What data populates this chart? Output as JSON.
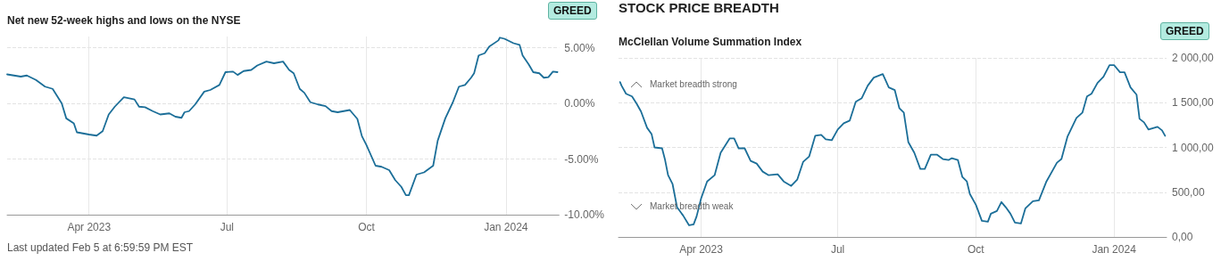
{
  "chart_data": [
    {
      "type": "line",
      "title": "Net new 52-week highs and lows on the NYSE",
      "color": "#1b6e98",
      "grid": true,
      "annotations": [
        "GREED",
        "Last updated Feb 5 at 6:59:59 PM EST"
      ],
      "xlim": [
        "2023-02-06",
        "2024-02-05"
      ],
      "xticks": [
        {
          "value": "2023-04-01",
          "label": "Apr 2023"
        },
        {
          "value": "2023-07-01",
          "label": "Jul"
        },
        {
          "value": "2023-10-01",
          "label": "Oct"
        },
        {
          "value": "2024-01-01",
          "label": "Jan 2024"
        }
      ],
      "ylim": [
        -10,
        6
      ],
      "yticks": [
        {
          "value": -10,
          "label": "-10.00%"
        },
        {
          "value": -5,
          "label": "-5.00%"
        },
        {
          "value": 0,
          "label": "0.00%"
        },
        {
          "value": 5,
          "label": "5.00%"
        }
      ],
      "x": [
        "2023-02-06",
        "2023-02-15",
        "2023-02-19",
        "2023-02-25",
        "2023-03-03",
        "2023-03-08",
        "2023-03-14",
        "2023-03-17",
        "2023-03-22",
        "2023-03-24",
        "2023-04-01",
        "2023-04-06",
        "2023-04-10",
        "2023-04-14",
        "2023-04-18",
        "2023-04-24",
        "2023-05-01",
        "2023-05-04",
        "2023-05-08",
        "2023-05-13",
        "2023-05-18",
        "2023-05-24",
        "2023-05-28",
        "2023-06-01",
        "2023-06-03",
        "2023-06-06",
        "2023-06-10",
        "2023-06-16",
        "2023-06-20",
        "2023-06-26",
        "2023-06-30",
        "2023-07-05",
        "2023-07-08",
        "2023-07-12",
        "2023-07-17",
        "2023-07-21",
        "2023-07-27",
        "2023-08-01",
        "2023-08-07",
        "2023-08-11",
        "2023-08-14",
        "2023-08-18",
        "2023-08-21",
        "2023-08-25",
        "2023-08-30",
        "2023-09-04",
        "2023-09-08",
        "2023-09-12",
        "2023-09-20",
        "2023-09-25",
        "2023-09-28",
        "2023-10-01",
        "2023-10-07",
        "2023-10-11",
        "2023-10-16",
        "2023-10-20",
        "2023-10-24",
        "2023-10-27",
        "2023-10-29",
        "2023-11-03",
        "2023-11-08",
        "2023-11-11",
        "2023-11-14",
        "2023-11-17",
        "2023-11-22",
        "2023-11-27",
        "2023-12-01",
        "2023-12-05",
        "2023-12-09",
        "2023-12-11",
        "2023-12-14",
        "2023-12-18",
        "2023-12-21",
        "2023-12-27",
        "2023-12-28",
        "2023-12-31",
        "2024-01-06",
        "2024-01-10",
        "2024-01-12",
        "2024-01-16",
        "2024-01-19",
        "2024-01-23",
        "2024-01-26",
        "2024-01-29",
        "2024-02-01",
        "2024-02-04"
      ],
      "values": [
        2.6,
        2.4,
        2.5,
        2.1,
        1.5,
        1.3,
        0.0,
        -1.35,
        -1.8,
        -2.6,
        -2.8,
        -2.9,
        -2.5,
        -1.0,
        -0.3,
        0.55,
        0.35,
        -0.3,
        -0.35,
        -0.7,
        -1.0,
        -0.9,
        -1.2,
        -1.3,
        -0.8,
        -0.7,
        -0.1,
        1.05,
        1.2,
        1.65,
        2.8,
        2.85,
        2.55,
        2.9,
        3.0,
        3.4,
        3.75,
        3.6,
        3.75,
        3.0,
        2.7,
        1.3,
        0.95,
        0.1,
        -0.1,
        -0.25,
        -0.7,
        -0.8,
        -0.6,
        -1.4,
        -2.95,
        -3.75,
        -5.6,
        -5.7,
        -6.0,
        -6.9,
        -7.5,
        -8.25,
        -8.25,
        -6.4,
        -6.2,
        -5.9,
        -5.6,
        -3.35,
        -1.35,
        0.1,
        1.5,
        1.65,
        2.3,
        2.7,
        4.3,
        4.5,
        5.1,
        5.65,
        5.9,
        5.8,
        5.4,
        5.25,
        4.3,
        3.5,
        2.8,
        2.7,
        2.3,
        2.35,
        2.85,
        2.8
      ]
    },
    {
      "type": "line",
      "title": "STOCK PRICE BREADTH",
      "subtitle": "McClellan Volume Summation Index",
      "color": "#1b6e98",
      "grid": true,
      "annotations": [
        "GREED",
        "Market breadth strong",
        "Market breadth weak"
      ],
      "xlim": [
        "2023-02-05",
        "2024-02-05"
      ],
      "xticks": [
        {
          "value": "2023-04-01",
          "label": "Apr 2023"
        },
        {
          "value": "2023-07-01",
          "label": "Jul"
        },
        {
          "value": "2023-10-01",
          "label": "Oct"
        },
        {
          "value": "2024-01-01",
          "label": "Jan 2024"
        }
      ],
      "ylim": [
        0,
        2000
      ],
      "yticks": [
        {
          "value": 0,
          "label": "0,00"
        },
        {
          "value": 500,
          "label": "500,00"
        },
        {
          "value": 1000,
          "label": "1 000,00"
        },
        {
          "value": 1500,
          "label": "1 500,00"
        },
        {
          "value": 2000,
          "label": "2 000,00"
        }
      ],
      "x": [
        "2023-02-06",
        "2023-02-07",
        "2023-02-10",
        "2023-02-14",
        "2023-02-17",
        "2023-02-20",
        "2023-02-24",
        "2023-02-27",
        "2023-03-01",
        "2023-03-06",
        "2023-03-08",
        "2023-03-10",
        "2023-03-13",
        "2023-03-16",
        "2023-03-20",
        "2023-03-24",
        "2023-03-27",
        "2023-03-29",
        "2023-04-01",
        "2023-04-05",
        "2023-04-10",
        "2023-04-14",
        "2023-04-17",
        "2023-04-20",
        "2023-04-23",
        "2023-04-26",
        "2023-04-30",
        "2023-05-04",
        "2023-05-08",
        "2023-05-12",
        "2023-05-16",
        "2023-05-22",
        "2023-05-26",
        "2023-05-31",
        "2023-06-04",
        "2023-06-08",
        "2023-06-12",
        "2023-06-16",
        "2023-06-20",
        "2023-06-23",
        "2023-06-27",
        "2023-07-01",
        "2023-07-05",
        "2023-07-09",
        "2023-07-13",
        "2023-07-17",
        "2023-07-21",
        "2023-07-25",
        "2023-07-31",
        "2023-08-04",
        "2023-08-08",
        "2023-08-11",
        "2023-08-14",
        "2023-08-17",
        "2023-08-21",
        "2023-08-25",
        "2023-08-28",
        "2023-09-01",
        "2023-09-05",
        "2023-09-09",
        "2023-09-13",
        "2023-09-15",
        "2023-09-19",
        "2023-09-22",
        "2023-09-25",
        "2023-09-27",
        "2023-10-01",
        "2023-10-05",
        "2023-10-09",
        "2023-10-11",
        "2023-10-15",
        "2023-10-18",
        "2023-10-21",
        "2023-10-24",
        "2023-10-27",
        "2023-10-31",
        "2023-11-03",
        "2023-11-08",
        "2023-11-12",
        "2023-11-17",
        "2023-11-24",
        "2023-11-27",
        "2023-12-01",
        "2023-12-07",
        "2023-12-11",
        "2023-12-14",
        "2023-12-17",
        "2023-12-21",
        "2023-12-25",
        "2023-12-29",
        "2024-01-01",
        "2024-01-05",
        "2024-01-08",
        "2024-01-12",
        "2024-01-16",
        "2024-01-18",
        "2024-01-21",
        "2024-01-24",
        "2024-01-30",
        "2024-02-02",
        "2024-02-04"
      ],
      "values": [
        1730,
        1690,
        1600,
        1570,
        1490,
        1400,
        1220,
        1150,
        1000,
        990,
        860,
        690,
        590,
        330,
        240,
        130,
        140,
        230,
        430,
        620,
        690,
        940,
        1020,
        1100,
        1100,
        990,
        990,
        850,
        820,
        730,
        690,
        700,
        620,
        570,
        640,
        840,
        900,
        1130,
        1140,
        1090,
        1080,
        1200,
        1270,
        1300,
        1510,
        1550,
        1690,
        1780,
        1820,
        1670,
        1640,
        1440,
        1390,
        1060,
        940,
        760,
        760,
        920,
        920,
        870,
        860,
        880,
        860,
        670,
        620,
        480,
        360,
        180,
        170,
        260,
        290,
        390,
        330,
        260,
        160,
        150,
        320,
        400,
        410,
        620,
        830,
        870,
        1120,
        1330,
        1390,
        1570,
        1600,
        1720,
        1790,
        1920,
        1920,
        1840,
        1840,
        1670,
        1590,
        1320,
        1280,
        1200,
        1230,
        1190,
        1130
      ]
    }
  ]
}
